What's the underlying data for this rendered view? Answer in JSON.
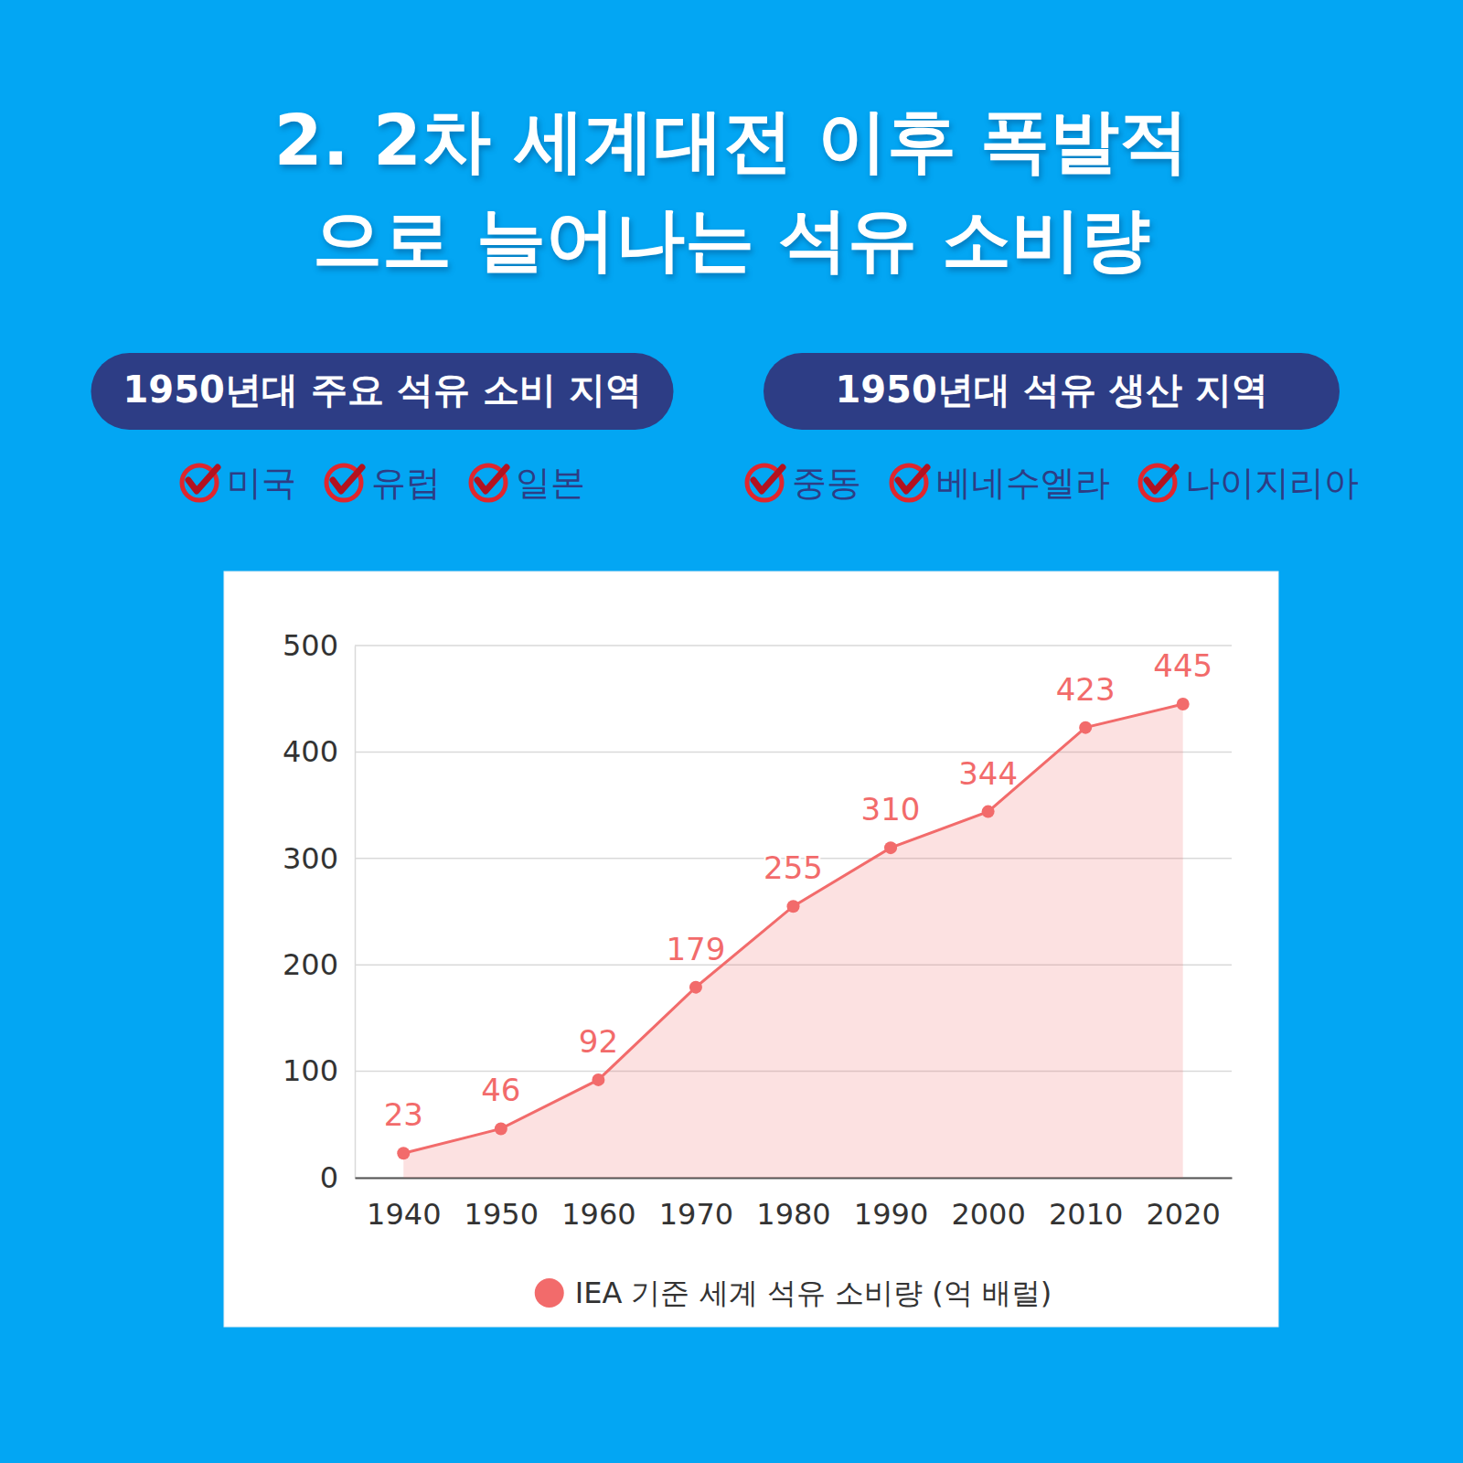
{
  "header": {
    "title_lines": [
      "2.  2차 세계대전 이후 폭발적",
      "으로 늘어나는 석유 소비량"
    ]
  },
  "sections": [
    {
      "heading": "1950년대 주요 석유 소비 지역",
      "items": [
        "미국",
        "유럽",
        "일본"
      ]
    },
    {
      "heading": "1950년대 석유 생산 지역",
      "items": [
        "중동",
        "베네수엘라",
        "나이지리아"
      ]
    }
  ],
  "chart_data": {
    "type": "line",
    "categories": [
      "1940",
      "1950",
      "1960",
      "1970",
      "1980",
      "1990",
      "2000",
      "2010",
      "2020"
    ],
    "series": [
      {
        "name": "IEA 기준 세계 석유 소비량 (억 배럴)",
        "color": "#f26b6b",
        "values": [
          23,
          46,
          92,
          179,
          255,
          310,
          344,
          423,
          445
        ]
      }
    ],
    "ylim": [
      0,
      500
    ],
    "yticks": [
      0,
      100,
      200,
      300,
      400,
      500
    ],
    "grid": true,
    "data_labels": true,
    "legend": "bottom",
    "marker": "circle"
  }
}
